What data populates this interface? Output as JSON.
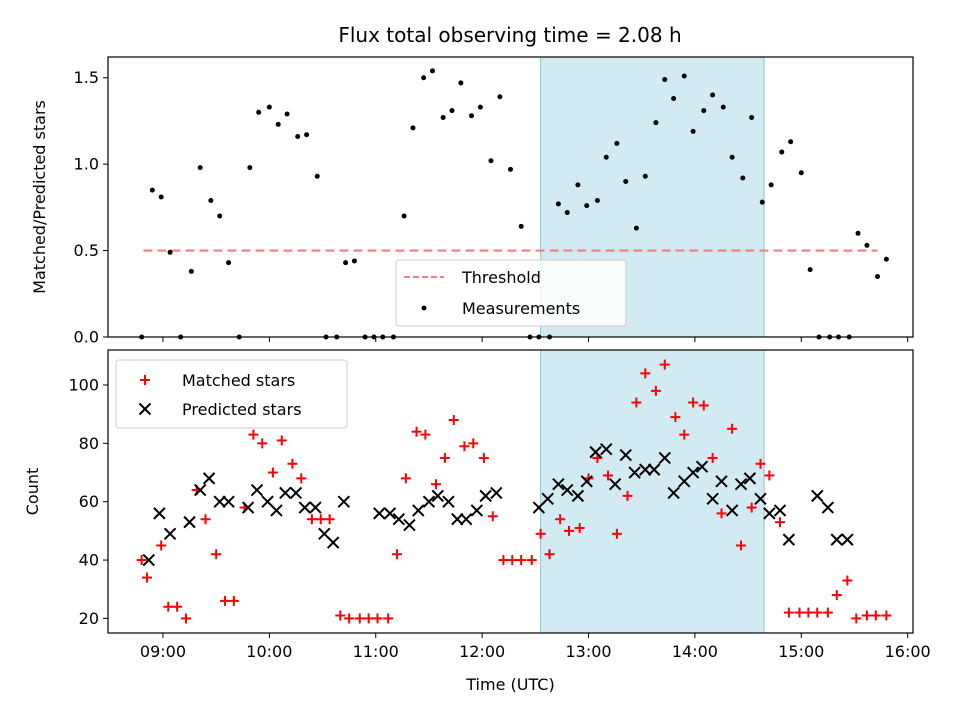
{
  "figure": {
    "title": "Flux total observing time = 2.08 h"
  },
  "colors": {
    "threshold": "#f08080",
    "measurements": "#000000",
    "matched": "#ff0000",
    "predicted": "#000000",
    "shade": "#add8e6"
  },
  "chart_data": [
    {
      "type": "scatter",
      "ylabel": "Matched/Predicted stars",
      "xlim": [
        "08:29",
        "16:03"
      ],
      "ylim": [
        0,
        1.62
      ],
      "yticks": [
        "0.0",
        "0.5",
        "1.0",
        "1.5"
      ],
      "shaded_region": [
        "12:33",
        "14:39"
      ],
      "legend_position": "lower center",
      "series": [
        {
          "name": "Threshold",
          "style": "dashed-line",
          "x": [
            "08:49",
            "15:43"
          ],
          "y": [
            0.5,
            0.5
          ]
        },
        {
          "name": "Measurements",
          "style": "dot",
          "x": [
            "08:48",
            "08:54",
            "08:59",
            "09:04",
            "09:10",
            "09:16",
            "09:21",
            "09:27",
            "09:32",
            "09:37",
            "09:43",
            "09:49",
            "09:54",
            "10:00",
            "10:05",
            "10:10",
            "10:16",
            "10:21",
            "10:27",
            "10:32",
            "10:38",
            "10:43",
            "10:48",
            "10:54",
            "10:59",
            "11:04",
            "11:10",
            "11:16",
            "11:21",
            "11:27",
            "11:32",
            "11:38",
            "11:43",
            "11:48",
            "11:54",
            "11:59",
            "12:05",
            "12:10",
            "12:16",
            "12:22",
            "12:27",
            "12:32",
            "12:38",
            "12:43",
            "12:48",
            "12:54",
            "12:59",
            "13:05",
            "13:10",
            "13:16",
            "13:21",
            "13:27",
            "13:32",
            "13:38",
            "13:43",
            "13:48",
            "13:54",
            "13:59",
            "14:05",
            "14:10",
            "14:16",
            "14:21",
            "14:27",
            "14:32",
            "14:38",
            "14:43",
            "14:49",
            "14:54",
            "15:00",
            "15:05",
            "15:10",
            "15:16",
            "15:21",
            "15:27",
            "15:32",
            "15:37",
            "15:43",
            "15:48"
          ],
          "y": [
            0.0,
            0.85,
            0.81,
            0.49,
            0.0,
            0.38,
            0.98,
            0.79,
            0.7,
            0.43,
            0.0,
            0.98,
            1.3,
            1.33,
            1.23,
            1.29,
            1.16,
            1.17,
            0.93,
            0.0,
            0.0,
            0.43,
            0.44,
            0.0,
            0.0,
            0.0,
            0.0,
            0.7,
            1.21,
            1.5,
            1.54,
            1.27,
            1.31,
            1.47,
            1.28,
            1.33,
            1.02,
            1.39,
            0.97,
            0.64,
            0.0,
            0.0,
            0.0,
            0.77,
            0.72,
            0.88,
            0.76,
            0.79,
            1.04,
            1.12,
            0.9,
            0.63,
            0.93,
            1.24,
            1.49,
            1.38,
            1.51,
            1.19,
            1.31,
            1.4,
            1.33,
            1.04,
            0.92,
            1.27,
            0.78,
            0.88,
            1.07,
            1.13,
            0.95,
            0.39,
            0.0,
            0.0,
            0.0,
            0.0,
            0.6,
            0.53,
            0.35,
            0.45
          ]
        }
      ]
    },
    {
      "type": "scatter",
      "xlabel": "Time (UTC)",
      "ylabel": "Count",
      "xlim": [
        "08:29",
        "16:03"
      ],
      "ylim": [
        15,
        112
      ],
      "yticks": [
        "20",
        "40",
        "60",
        "80",
        "100"
      ],
      "xticks": [
        "09:00",
        "10:00",
        "11:00",
        "12:00",
        "13:00",
        "14:00",
        "15:00",
        "16:00"
      ],
      "shaded_region": [
        "12:33",
        "14:39"
      ],
      "legend_position": "upper left",
      "series": [
        {
          "name": "Matched stars",
          "style": "plus",
          "x": [
            "08:48",
            "08:51",
            "08:59",
            "09:03",
            "09:08",
            "09:13",
            "09:19",
            "09:24",
            "09:30",
            "09:35",
            "09:40",
            "09:46",
            "09:51",
            "09:56",
            "10:02",
            "10:07",
            "10:13",
            "10:18",
            "10:24",
            "10:29",
            "10:34",
            "10:40",
            "10:45",
            "10:51",
            "10:56",
            "11:01",
            "11:07",
            "11:12",
            "11:17",
            "11:23",
            "11:28",
            "11:34",
            "11:39",
            "11:44",
            "11:50",
            "11:55",
            "12:01",
            "12:06",
            "12:12",
            "12:17",
            "12:22",
            "12:28",
            "12:33",
            "12:38",
            "12:44",
            "12:49",
            "12:55",
            "13:00",
            "13:05",
            "13:11",
            "13:16",
            "13:22",
            "13:27",
            "13:32",
            "13:38",
            "13:43",
            "13:49",
            "13:54",
            "13:59",
            "14:05",
            "14:10",
            "14:15",
            "14:21",
            "14:26",
            "14:32",
            "14:37",
            "14:42",
            "14:48",
            "14:53",
            "14:59",
            "15:04",
            "15:09",
            "15:15",
            "15:20",
            "15:26",
            "15:31",
            "15:37",
            "15:42",
            "15:48"
          ],
          "y": [
            40,
            34,
            45,
            24,
            24,
            20,
            64,
            54,
            42,
            26,
            26,
            58,
            83,
            80,
            70,
            81,
            73,
            68,
            54,
            54,
            54,
            21,
            20,
            20,
            20,
            20,
            20,
            42,
            68,
            84,
            83,
            66,
            75,
            88,
            79,
            80,
            75,
            55,
            40,
            40,
            40,
            40,
            49,
            42,
            54,
            50,
            51,
            68,
            75,
            69,
            49,
            62,
            94,
            104,
            98,
            107,
            89,
            83,
            94,
            93,
            75,
            56,
            85,
            45,
            58,
            73,
            69,
            53,
            22,
            22,
            22,
            22,
            22,
            28,
            33,
            20,
            21,
            21,
            21
          ]
        },
        {
          "name": "Predicted stars",
          "style": "x",
          "x": [
            "08:52",
            "08:58",
            "09:04",
            "09:15",
            "09:21",
            "09:26",
            "09:32",
            "09:37",
            "09:48",
            "09:53",
            "09:59",
            "10:04",
            "10:09",
            "10:15",
            "10:20",
            "10:26",
            "10:31",
            "10:36",
            "10:42",
            "11:02",
            "11:08",
            "11:13",
            "11:19",
            "11:24",
            "11:30",
            "11:35",
            "11:41",
            "11:46",
            "11:51",
            "11:57",
            "12:02",
            "12:08",
            "12:32",
            "12:37",
            "12:43",
            "12:48",
            "12:54",
            "12:59",
            "13:04",
            "13:10",
            "13:15",
            "13:21",
            "13:26",
            "13:32",
            "13:37",
            "13:43",
            "13:48",
            "13:54",
            "13:59",
            "14:04",
            "14:10",
            "14:15",
            "14:21",
            "14:26",
            "14:31",
            "14:37",
            "14:42",
            "14:48",
            "14:53",
            "15:09",
            "15:15",
            "15:20",
            "15:26"
          ],
          "y": [
            40,
            56,
            49,
            53,
            64,
            68,
            60,
            60,
            58,
            64,
            60,
            57,
            63,
            63,
            58,
            58,
            49,
            46,
            60,
            56,
            56,
            54,
            52,
            57,
            60,
            62,
            60,
            54,
            54,
            57,
            62,
            63,
            58,
            61,
            66,
            64,
            62,
            67,
            77,
            78,
            66,
            76,
            70,
            71,
            71,
            75,
            63,
            67,
            70,
            72,
            61,
            67,
            57,
            66,
            68,
            61,
            56,
            57,
            47,
            62,
            58,
            47,
            47
          ]
        }
      ]
    }
  ]
}
